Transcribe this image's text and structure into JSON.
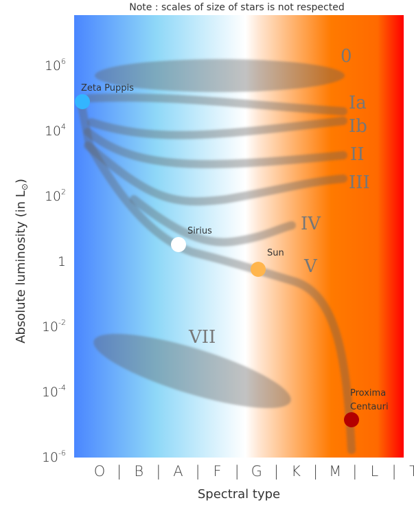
{
  "note": "Note : scales of size of stars is not respected",
  "y_axis": {
    "title": "Absolute luminosity  (in L",
    "unit_symbol": "⊙",
    "title_close": ")",
    "ticks": [
      {
        "base": "10",
        "exp": "6"
      },
      {
        "base": "10",
        "exp": "4"
      },
      {
        "base": "10",
        "exp": "2"
      },
      {
        "base": "1",
        "exp": ""
      },
      {
        "base": "10",
        "exp": "-2"
      },
      {
        "base": "10",
        "exp": "-4"
      },
      {
        "base": "10",
        "exp": "-6"
      }
    ]
  },
  "x_axis": {
    "title": "Spectral type",
    "ticks": [
      "O",
      "|",
      "B",
      "|",
      "A",
      "|",
      "F",
      "|",
      "G",
      "|",
      "K",
      "|",
      "M",
      "|",
      "L",
      "|",
      "T"
    ]
  },
  "luminosity_classes": [
    "0",
    "Ia",
    "Ib",
    "II",
    "III",
    "IV",
    "V",
    "VII"
  ],
  "stars": [
    {
      "name": "Zeta Puppis",
      "color": "#33b5ff"
    },
    {
      "name": "Sirius",
      "color": "#ffffff"
    },
    {
      "name": "Sun",
      "color": "#ffb54d"
    },
    {
      "name": "Proxima",
      "name2": "Centauri",
      "color": "#b30000"
    }
  ],
  "gradient_colors": [
    "#4a86ff",
    "#8fd8f8",
    "#ffffff",
    "#ffe0c8",
    "#ff7a00",
    "#ff0000"
  ]
}
